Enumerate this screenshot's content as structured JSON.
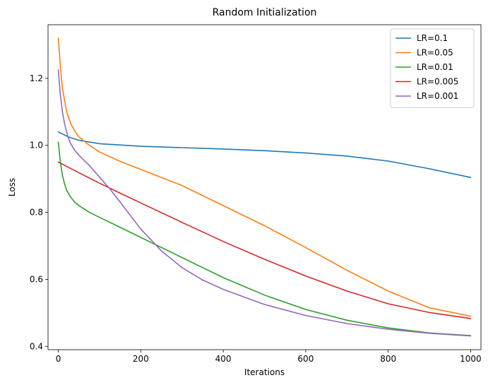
{
  "chart_data": {
    "type": "line",
    "title": "Random Initialization",
    "xlabel": "Iterations",
    "ylabel": "Loss",
    "xlim": [
      -25,
      1025
    ],
    "ylim": [
      0.39,
      1.36
    ],
    "xticks": [
      0,
      200,
      400,
      600,
      800,
      1000
    ],
    "xtick_labels": [
      "0",
      "200",
      "400",
      "600",
      "800",
      "1000"
    ],
    "yticks": [
      0.4,
      0.6,
      0.8,
      1.0,
      1.2
    ],
    "ytick_labels": [
      "0.4",
      "0.6",
      "0.8",
      "1.0",
      "1.2"
    ],
    "grid": false,
    "legend_position": "top-right",
    "series": [
      {
        "name": "LR=0.1",
        "color": "#1f77b4",
        "x": [
          0,
          25,
          50,
          100,
          200,
          300,
          400,
          500,
          600,
          700,
          800,
          900,
          1000
        ],
        "y": [
          1.04,
          1.025,
          1.015,
          1.005,
          0.997,
          0.993,
          0.989,
          0.984,
          0.977,
          0.968,
          0.953,
          0.93,
          0.904
        ]
      },
      {
        "name": "LR=0.05",
        "color": "#ff7f0e",
        "x": [
          0,
          5,
          10,
          20,
          30,
          40,
          50,
          75,
          100,
          150,
          200,
          300,
          400,
          500,
          600,
          700,
          800,
          900,
          1000
        ],
        "y": [
          1.32,
          1.235,
          1.17,
          1.1,
          1.065,
          1.042,
          1.025,
          1.0,
          0.98,
          0.952,
          0.928,
          0.88,
          0.82,
          0.76,
          0.695,
          0.627,
          0.565,
          0.515,
          0.49
        ]
      },
      {
        "name": "LR=0.01",
        "color": "#2ca02c",
        "x": [
          0,
          5,
          10,
          15,
          20,
          30,
          40,
          50,
          75,
          100,
          150,
          200,
          300,
          400,
          500,
          600,
          700,
          800,
          900,
          1000
        ],
        "y": [
          1.01,
          0.95,
          0.91,
          0.885,
          0.866,
          0.845,
          0.83,
          0.82,
          0.8,
          0.785,
          0.755,
          0.725,
          0.665,
          0.605,
          0.553,
          0.51,
          0.478,
          0.455,
          0.44,
          0.432
        ]
      },
      {
        "name": "LR=0.005",
        "color": "#d62728",
        "x": [
          0,
          50,
          100,
          150,
          200,
          300,
          400,
          500,
          600,
          700,
          800,
          900,
          1000
        ],
        "y": [
          0.95,
          0.918,
          0.887,
          0.857,
          0.828,
          0.77,
          0.713,
          0.66,
          0.61,
          0.565,
          0.527,
          0.501,
          0.483
        ]
      },
      {
        "name": "LR=0.001",
        "color": "#9467bd",
        "x": [
          0,
          5,
          10,
          15,
          20,
          25,
          30,
          40,
          50,
          75,
          100,
          125,
          150,
          200,
          250,
          300,
          350,
          400,
          500,
          600,
          700,
          800,
          900,
          1000
        ],
        "y": [
          1.225,
          1.15,
          1.1,
          1.065,
          1.04,
          1.02,
          1.005,
          0.985,
          0.97,
          0.94,
          0.905,
          0.87,
          0.83,
          0.75,
          0.685,
          0.635,
          0.598,
          0.57,
          0.525,
          0.492,
          0.468,
          0.451,
          0.439,
          0.431
        ]
      }
    ]
  }
}
